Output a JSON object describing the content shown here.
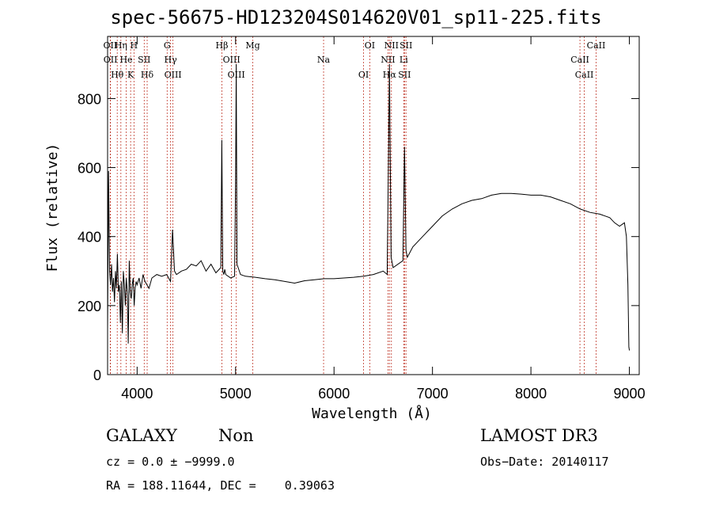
{
  "chart_data": {
    "type": "line",
    "title": "spec-56675-HD123204S014620V01_sp11-225.fits",
    "xlabel": "Wavelength (Å)",
    "ylabel": "Flux (relative)",
    "xlim": [
      3700,
      9100
    ],
    "ylim": [
      0,
      980
    ],
    "xticks": [
      4000,
      5000,
      6000,
      7000,
      8000,
      9000
    ],
    "yticks": [
      0,
      200,
      400,
      600,
      800
    ],
    "grid": false,
    "series": [
      {
        "values_x": [
          3700,
          3710,
          3720,
          3730,
          3740,
          3750,
          3760,
          3770,
          3780,
          3790,
          3800,
          3810,
          3820,
          3830,
          3840,
          3850,
          3860,
          3870,
          3880,
          3890,
          3900,
          3910,
          3920,
          3930,
          3940,
          3950,
          3960,
          3970,
          3980,
          3990,
          4000,
          4020,
          4040,
          4060,
          4080,
          4100,
          4120,
          4150,
          4200,
          4250,
          4300,
          4340,
          4360,
          4380,
          4400,
          4450,
          4500,
          4550,
          4600,
          4650,
          4700,
          4750,
          4800,
          4850,
          4860,
          4870,
          4880,
          4890,
          4900,
          4950,
          4990,
          5000,
          5007,
          5015,
          5050,
          5100,
          5200,
          5300,
          5400,
          5500,
          5600,
          5700,
          5800,
          5900,
          6000,
          6100,
          6200,
          6300,
          6400,
          6500,
          6540,
          6560,
          6563,
          6566,
          6580,
          6600,
          6700,
          6716,
          6731,
          6745,
          6800,
          6900,
          7000,
          7100,
          7200,
          7300,
          7400,
          7500,
          7600,
          7700,
          7800,
          7900,
          8000,
          8100,
          8200,
          8300,
          8400,
          8500,
          8600,
          8700,
          8800,
          8850,
          8900,
          8950,
          8970,
          8985,
          8995,
          9000
        ],
        "values_y": [
          130,
          590,
          300,
          260,
          320,
          240,
          280,
          210,
          300,
          250,
          350,
          240,
          260,
          150,
          270,
          120,
          300,
          260,
          200,
          280,
          240,
          90,
          330,
          240,
          220,
          260,
          280,
          200,
          250,
          270,
          260,
          280,
          250,
          290,
          270,
          260,
          250,
          280,
          290,
          285,
          290,
          270,
          420,
          300,
          290,
          300,
          305,
          320,
          315,
          330,
          300,
          320,
          295,
          310,
          680,
          300,
          290,
          305,
          290,
          280,
          285,
          560,
          900,
          320,
          290,
          285,
          282,
          278,
          275,
          270,
          265,
          272,
          275,
          278,
          278,
          280,
          282,
          285,
          290,
          300,
          290,
          800,
          900,
          780,
          340,
          310,
          330,
          660,
          360,
          340,
          370,
          400,
          430,
          460,
          480,
          495,
          505,
          510,
          520,
          525,
          525,
          523,
          520,
          520,
          515,
          505,
          495,
          480,
          470,
          465,
          455,
          440,
          430,
          440,
          400,
          260,
          80,
          70
        ]
      }
    ],
    "line_markers": [
      {
        "label": "OII",
        "wavelength": 3727
      },
      {
        "label": "OII",
        "wavelength": 3729
      },
      {
        "label": "Hθ",
        "wavelength": 3798
      },
      {
        "label": "Hη",
        "wavelength": 3835
      },
      {
        "label": "He",
        "wavelength": 3889
      },
      {
        "label": "K",
        "wavelength": 3934
      },
      {
        "label": "H",
        "wavelength": 3968
      },
      {
        "label": "SII",
        "wavelength": 4072
      },
      {
        "label": "Hδ",
        "wavelength": 4102
      },
      {
        "label": "OIII",
        "wavelength": 4364
      },
      {
        "label": "Hγ",
        "wavelength": 4340
      },
      {
        "label": "G",
        "wavelength": 4305
      },
      {
        "label": "Hβ",
        "wavelength": 4861
      },
      {
        "label": "OIII",
        "wavelength": 4959
      },
      {
        "label": "OIII",
        "wavelength": 5007
      },
      {
        "label": "Mg",
        "wavelength": 5175
      },
      {
        "label": "Na",
        "wavelength": 5894
      },
      {
        "label": "OI",
        "wavelength": 6300
      },
      {
        "label": "OI",
        "wavelength": 6363
      },
      {
        "label": "NII",
        "wavelength": 6548
      },
      {
        "label": "Hα",
        "wavelength": 6563
      },
      {
        "label": "NII",
        "wavelength": 6583
      },
      {
        "label": "SII",
        "wavelength": 6716
      },
      {
        "label": "Li",
        "wavelength": 6708
      },
      {
        "label": "SII",
        "wavelength": 6731
      },
      {
        "label": "CaII",
        "wavelength": 8498
      },
      {
        "label": "CaII",
        "wavelength": 8542
      },
      {
        "label": "CaII",
        "wavelength": 8662
      }
    ]
  },
  "info": {
    "object_type": "GALAXY",
    "subclass": "Non",
    "survey": "LAMOST DR3",
    "cz": "cz = 0.0 ± −9999.0",
    "obs_date": "Obs−Date: 20140117",
    "radec": "RA = 188.11644, DEC =    0.39063"
  },
  "colors": {
    "spectrum": "#000000",
    "marker_line": "#c0392b",
    "axis": "#000000"
  }
}
